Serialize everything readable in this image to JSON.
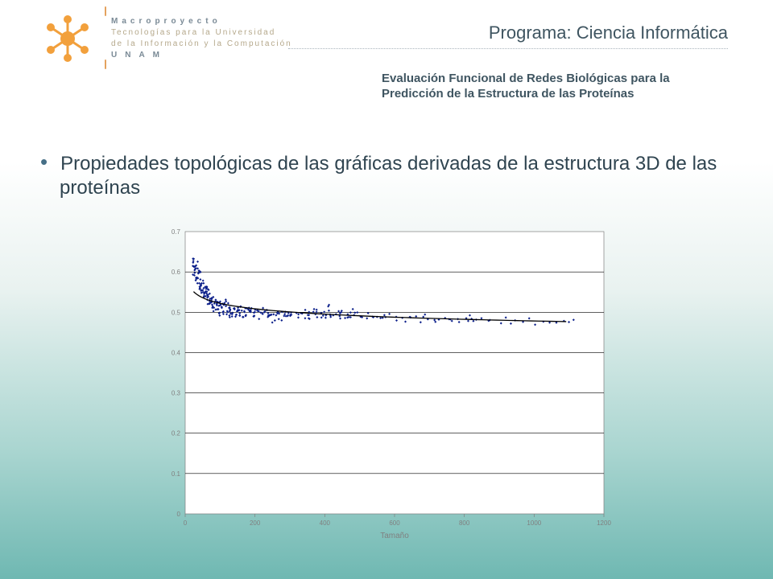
{
  "header": {
    "logo_line1": "Macroproyecto",
    "logo_line2": "Tecnologías para la Universidad",
    "logo_line3": "de la Información y la Computación",
    "logo_line4": "UNAM"
  },
  "titles": {
    "program": "Programa: Ciencia Informática",
    "subtitle": "Evaluación Funcional de Redes Biológicas para la Predicción de la Estructura de las Proteínas",
    "bullet": "Propiedades topológicas de las gráficas derivadas de la estructura 3D de las proteínas"
  },
  "chart": {
    "type": "scatter",
    "xlim": [
      0,
      1200
    ],
    "ylim": [
      0,
      0.7
    ],
    "xtick_step": 200,
    "ytick_step": 0.1,
    "xlabel": "Tamaño",
    "tick_fontsize": 8,
    "label_fontsize": 10,
    "colors": {
      "plot_bg": "#ffffff",
      "border": "#7e7e7e",
      "grid": "#000000",
      "point": "#0b1f8a",
      "fit": "#000000",
      "text": "#808080"
    },
    "marker_size": 3,
    "trend": {
      "formula": "power",
      "a": 0.622,
      "k": -0.038,
      "x_start": 24,
      "x_end": 1110
    },
    "scatter_base": [
      [
        22,
        0.624
      ],
      [
        24,
        0.63
      ],
      [
        25,
        0.6
      ],
      [
        28,
        0.615
      ],
      [
        30,
        0.6
      ],
      [
        32,
        0.585
      ],
      [
        34,
        0.612
      ],
      [
        36,
        0.58
      ],
      [
        38,
        0.6
      ],
      [
        40,
        0.57
      ],
      [
        42,
        0.595
      ],
      [
        44,
        0.56
      ],
      [
        46,
        0.575
      ],
      [
        48,
        0.555
      ],
      [
        50,
        0.575
      ],
      [
        52,
        0.55
      ],
      [
        54,
        0.56
      ],
      [
        56,
        0.54
      ],
      [
        58,
        0.555
      ],
      [
        60,
        0.558
      ],
      [
        62,
        0.542
      ],
      [
        64,
        0.55
      ],
      [
        66,
        0.528
      ],
      [
        68,
        0.545
      ],
      [
        70,
        0.52
      ],
      [
        72,
        0.538
      ],
      [
        74,
        0.535
      ],
      [
        76,
        0.518
      ],
      [
        78,
        0.532
      ],
      [
        80,
        0.515
      ],
      [
        85,
        0.53
      ],
      [
        90,
        0.512
      ],
      [
        92,
        0.526
      ],
      [
        95,
        0.508
      ],
      [
        98,
        0.522
      ],
      [
        100,
        0.505
      ],
      [
        105,
        0.52
      ],
      [
        110,
        0.5
      ],
      [
        110,
        0.525
      ],
      [
        115,
        0.518
      ],
      [
        120,
        0.5
      ],
      [
        125,
        0.515
      ],
      [
        128,
        0.497
      ],
      [
        130,
        0.513
      ],
      [
        135,
        0.495
      ],
      [
        140,
        0.512
      ],
      [
        145,
        0.495
      ],
      [
        150,
        0.51
      ],
      [
        152,
        0.506
      ],
      [
        155,
        0.492
      ],
      [
        160,
        0.509
      ],
      [
        165,
        0.49
      ],
      [
        170,
        0.508
      ],
      [
        175,
        0.49
      ],
      [
        180,
        0.506
      ],
      [
        185,
        0.5
      ],
      [
        190,
        0.505
      ],
      [
        195,
        0.488
      ],
      [
        200,
        0.504
      ],
      [
        205,
        0.5
      ],
      [
        210,
        0.503
      ],
      [
        215,
        0.487
      ],
      [
        220,
        0.502
      ],
      [
        225,
        0.5
      ],
      [
        230,
        0.5
      ],
      [
        235,
        0.486
      ],
      [
        240,
        0.5
      ],
      [
        245,
        0.498
      ],
      [
        250,
        0.498
      ],
      [
        255,
        0.485
      ],
      [
        260,
        0.498
      ],
      [
        265,
        0.496
      ],
      [
        270,
        0.496
      ],
      [
        275,
        0.484
      ],
      [
        280,
        0.495
      ],
      [
        285,
        0.494
      ],
      [
        290,
        0.494
      ],
      [
        295,
        0.485
      ],
      [
        300,
        0.494
      ],
      [
        310,
        0.495
      ],
      [
        320,
        0.492
      ],
      [
        330,
        0.498
      ],
      [
        340,
        0.49
      ],
      [
        350,
        0.505
      ],
      [
        355,
        0.493
      ],
      [
        360,
        0.49
      ],
      [
        370,
        0.5
      ],
      [
        375,
        0.508
      ],
      [
        380,
        0.49
      ],
      [
        390,
        0.492
      ],
      [
        395,
        0.503
      ],
      [
        400,
        0.49
      ],
      [
        410,
        0.498
      ],
      [
        415,
        0.51
      ],
      [
        420,
        0.488
      ],
      [
        430,
        0.497
      ],
      [
        440,
        0.488
      ],
      [
        445,
        0.504
      ],
      [
        450,
        0.496
      ],
      [
        460,
        0.484
      ],
      [
        470,
        0.494
      ],
      [
        475,
        0.501
      ],
      [
        480,
        0.487
      ],
      [
        490,
        0.494
      ],
      [
        500,
        0.484
      ],
      [
        510,
        0.493
      ],
      [
        520,
        0.488
      ],
      [
        525,
        0.498
      ],
      [
        530,
        0.492
      ],
      [
        540,
        0.485
      ],
      [
        550,
        0.492
      ],
      [
        560,
        0.484
      ],
      [
        570,
        0.49
      ],
      [
        575,
        0.495
      ],
      [
        580,
        0.487
      ],
      [
        590,
        0.49
      ],
      [
        600,
        0.483
      ],
      [
        610,
        0.49
      ],
      [
        620,
        0.487
      ],
      [
        625,
        0.48
      ],
      [
        640,
        0.488
      ],
      [
        650,
        0.484
      ],
      [
        660,
        0.488
      ],
      [
        670,
        0.481
      ],
      [
        680,
        0.487
      ],
      [
        690,
        0.49
      ],
      [
        700,
        0.483
      ],
      [
        710,
        0.486
      ],
      [
        720,
        0.48
      ],
      [
        730,
        0.486
      ],
      [
        740,
        0.486
      ],
      [
        750,
        0.478
      ],
      [
        760,
        0.484
      ],
      [
        770,
        0.482
      ],
      [
        780,
        0.484
      ],
      [
        790,
        0.476
      ],
      [
        800,
        0.484
      ],
      [
        810,
        0.484
      ],
      [
        815,
        0.489
      ],
      [
        820,
        0.478
      ],
      [
        830,
        0.483
      ],
      [
        840,
        0.48
      ],
      [
        850,
        0.483
      ],
      [
        865,
        0.474
      ],
      [
        880,
        0.482
      ],
      [
        900,
        0.478
      ],
      [
        915,
        0.483
      ],
      [
        930,
        0.474
      ],
      [
        950,
        0.481
      ],
      [
        970,
        0.48
      ],
      [
        985,
        0.481
      ],
      [
        1000,
        0.474
      ],
      [
        1020,
        0.479
      ],
      [
        1040,
        0.478
      ],
      [
        1060,
        0.475
      ],
      [
        1080,
        0.478
      ],
      [
        1095,
        0.472
      ],
      [
        1110,
        0.478
      ]
    ],
    "scatter_jitter_y": 0.012
  }
}
